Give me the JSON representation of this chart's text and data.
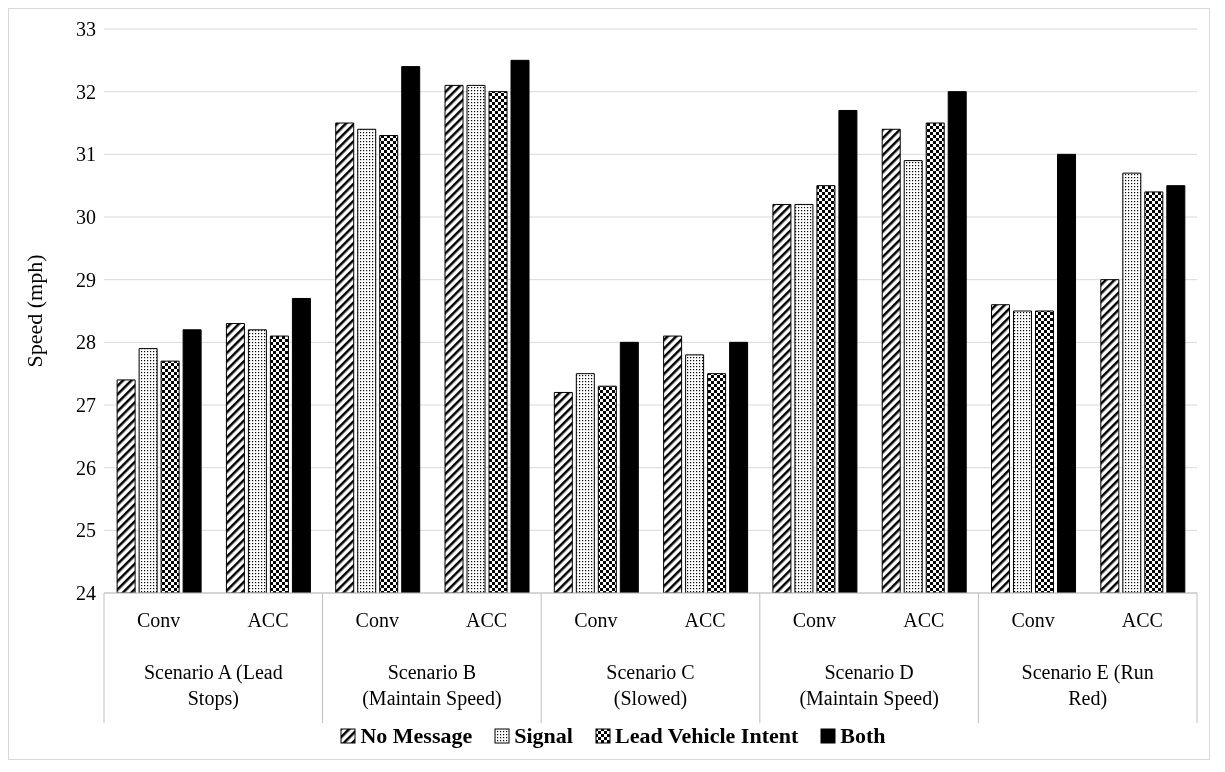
{
  "chart_data": {
    "type": "bar",
    "ylabel": "Speed (mph)",
    "categories": [
      "Conv",
      "ACC",
      "Conv",
      "ACC",
      "Conv",
      "ACC",
      "Conv",
      "ACC",
      "Conv",
      "ACC"
    ],
    "annotations": [
      "Scenario A (Lead Stops)",
      "Scenario B (Maintain Speed)",
      "Scenario C (Slowed)",
      "Scenario D (Maintain Speed)",
      "Scenario E (Run Red)"
    ],
    "series": [
      {
        "name": "No Message",
        "color": "#000000",
        "values": [
          27.4,
          28.3,
          31.5,
          32.1,
          27.2,
          28.1,
          30.2,
          31.4,
          28.6,
          29.0
        ]
      },
      {
        "name": "Signal",
        "color": "#000000",
        "values": [
          27.9,
          28.2,
          31.4,
          32.1,
          27.5,
          27.8,
          30.2,
          30.9,
          28.5,
          30.7
        ]
      },
      {
        "name": "Lead Vehicle Intent",
        "color": "#000000",
        "values": [
          27.7,
          28.1,
          31.3,
          32.0,
          27.3,
          27.5,
          30.5,
          31.5,
          28.5,
          30.4
        ]
      },
      {
        "name": "Both",
        "color": "#000000",
        "values": [
          28.2,
          28.7,
          32.4,
          32.5,
          28.0,
          28.0,
          31.7,
          32.0,
          31.0,
          30.5
        ]
      }
    ],
    "ylim": [
      24,
      33
    ],
    "yticks": [
      24,
      25,
      26,
      27,
      28,
      29,
      30,
      31,
      32,
      33
    ],
    "grid": "y",
    "legend": "bottom"
  }
}
